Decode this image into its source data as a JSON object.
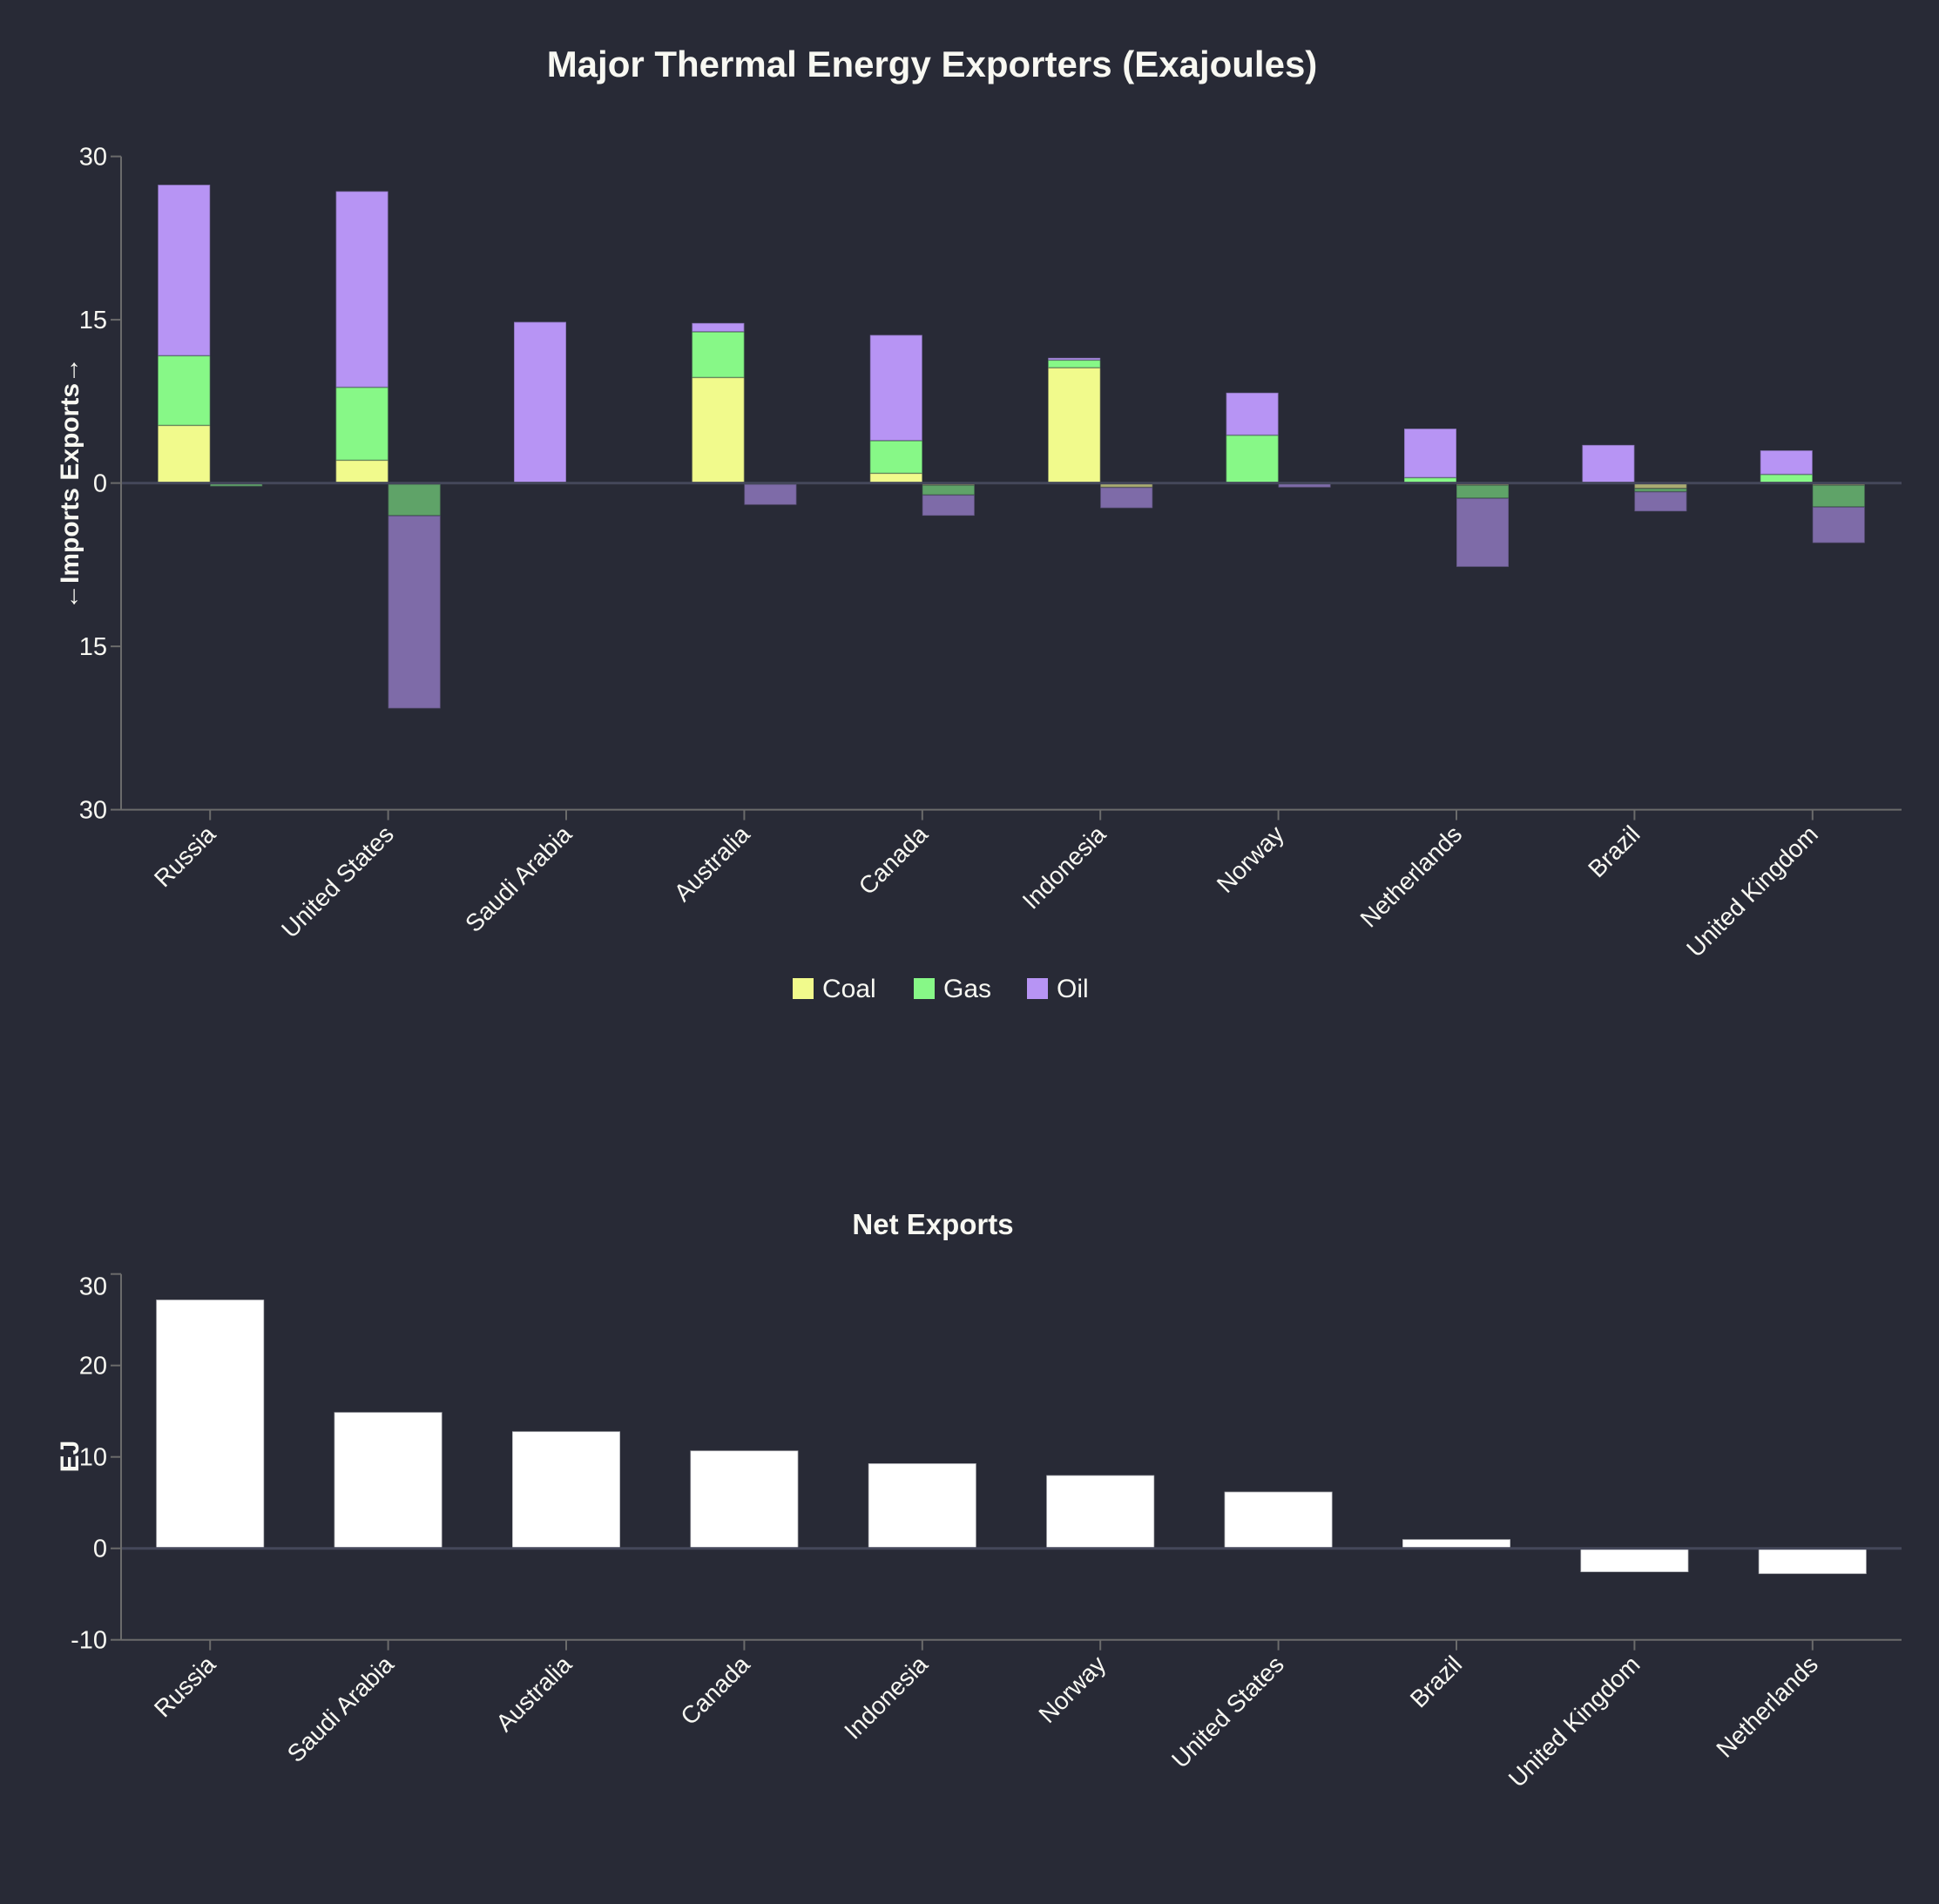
{
  "chart_data": [
    {
      "type": "bar",
      "stacked": true,
      "title": "Major Thermal Energy Exporters (Exajoules)",
      "ylabel": "←Imports Exports→",
      "xlabel": "",
      "ylim": [
        -30,
        30
      ],
      "yticks": [
        30,
        15,
        0,
        -15,
        -30
      ],
      "ytick_labels": [
        "30",
        "15",
        "0",
        "15",
        "30"
      ],
      "categories": [
        "Russia",
        "United States",
        "Saudi Arabia",
        "Australia",
        "Canada",
        "Indonesia",
        "Norway",
        "Netherlands",
        "Brazil",
        "United Kingdom"
      ],
      "series": [
        {
          "name": "Coal",
          "color": "#f1fa8c",
          "exports": [
            5.3,
            2.1,
            0,
            9.7,
            0.9,
            10.6,
            0,
            0,
            0,
            0
          ],
          "imports": [
            0,
            -0.1,
            0,
            0,
            -0.2,
            -0.4,
            0,
            -0.2,
            -0.5,
            -0.2
          ]
        },
        {
          "name": "Gas",
          "color": "#87f887",
          "exports": [
            6.4,
            6.7,
            0,
            4.2,
            3.0,
            0.7,
            4.4,
            0.5,
            0,
            0.8
          ],
          "imports": [
            -0.3,
            -2.9,
            0,
            -0.1,
            -0.9,
            0,
            0,
            -1.2,
            -0.3,
            -2.0
          ]
        },
        {
          "name": "Oil",
          "color": "#b794f4",
          "exports": [
            15.7,
            18.0,
            14.8,
            0.8,
            9.7,
            0.2,
            3.9,
            4.5,
            3.5,
            2.2
          ],
          "imports": [
            0,
            -17.7,
            0,
            -1.9,
            -1.9,
            -1.9,
            -0.4,
            -6.3,
            -1.8,
            -3.3
          ]
        }
      ],
      "legend": {
        "placement": "bottom-center",
        "entries": [
          "Coal",
          "Gas",
          "Oil"
        ]
      },
      "grid": false
    },
    {
      "type": "bar",
      "title": "Net Exports",
      "ylabel": "EJ",
      "xlabel": "",
      "ylim": [
        -10,
        30
      ],
      "yticks": [
        30,
        20,
        10,
        0,
        -10
      ],
      "ytick_labels": [
        "30",
        "20",
        "10",
        "0",
        "-10"
      ],
      "categories": [
        "Russia",
        "Saudi Arabia",
        "Australia",
        "Canada",
        "Indonesia",
        "Norway",
        "United States",
        "Brazil",
        "United Kingdom",
        "Netherlands"
      ],
      "values": [
        27.2,
        14.9,
        12.8,
        10.7,
        9.3,
        8.0,
        6.2,
        1.0,
        -2.6,
        -2.8
      ],
      "color": "#ffffff",
      "grid": false
    }
  ]
}
